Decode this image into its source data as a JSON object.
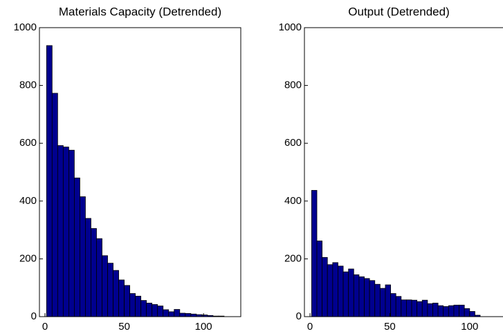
{
  "chart_data": [
    {
      "type": "histogram",
      "title": "Materials Capacity (Detrended)",
      "bins": [
        1,
        4.5,
        8,
        11.5,
        15,
        18.5,
        22,
        25.5,
        29,
        32.5,
        36,
        39.5,
        43,
        46.5,
        50,
        53.5,
        57,
        60.5,
        64,
        67.5,
        71,
        74.5,
        78,
        81.5,
        85,
        88.5,
        92,
        95.5,
        99,
        102.5,
        106,
        109.5,
        113
      ],
      "values": [
        938,
        773,
        592,
        587,
        576,
        480,
        415,
        340,
        305,
        270,
        211,
        185,
        160,
        127,
        108,
        80,
        71,
        56,
        47,
        42,
        37,
        24,
        17,
        25,
        12,
        11,
        9,
        7,
        6,
        4,
        2,
        2
      ],
      "color": "#00008f",
      "xlim": [
        -3.5,
        123.5
      ],
      "ylim": [
        0,
        1000
      ],
      "xticks": [
        0,
        50,
        100
      ],
      "yticks": [
        0,
        200,
        400,
        600,
        800,
        1000
      ]
    },
    {
      "type": "histogram",
      "title": "Output (Detrended)",
      "bins": [
        1,
        4.3,
        7.6,
        10.9,
        14.2,
        17.5,
        20.8,
        24.1,
        27.4,
        30.7,
        34,
        37.3,
        40.6,
        43.9,
        47.2,
        50.5,
        53.8,
        57.1,
        60.4,
        63.7,
        67,
        70.3,
        73.6,
        76.9,
        80.2,
        83.5,
        86.8,
        90.1,
        93.4,
        96.7,
        100,
        103.3,
        106.6
      ],
      "values": [
        437,
        262,
        205,
        180,
        187,
        175,
        155,
        165,
        145,
        138,
        132,
        125,
        112,
        98,
        110,
        80,
        70,
        58,
        58,
        57,
        52,
        57,
        45,
        47,
        38,
        35,
        38,
        40,
        40,
        28,
        18,
        5
      ],
      "color": "#00008f",
      "xlim": [
        -3.5,
        123.5
      ],
      "ylim": [
        0,
        1000
      ],
      "xticks": [
        0,
        50,
        100
      ],
      "yticks": [
        0,
        200,
        400,
        600,
        800,
        1000
      ]
    }
  ]
}
